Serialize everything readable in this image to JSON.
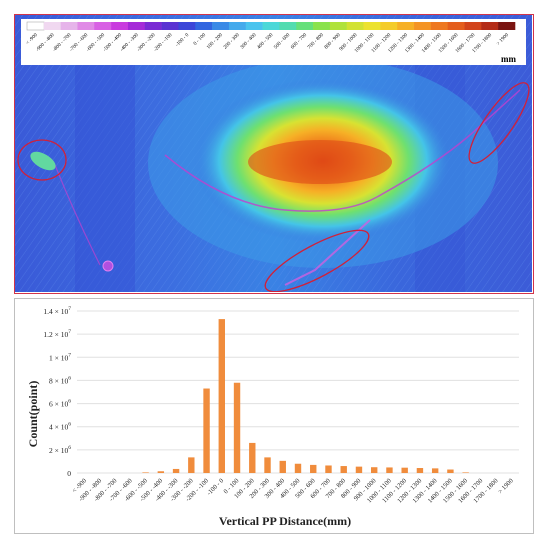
{
  "map_panel": {
    "colorbar": {
      "unit": "mm",
      "labels": [
        "< -900",
        "-900 - -800",
        "-800 - -700",
        "-700 - -600",
        "-600 - -500",
        "-500 - -400",
        "-400 - -300",
        "-300 - -200",
        "-200 - -100",
        "-100 - 0",
        "0 - 100",
        "100 - 200",
        "200 - 300",
        "300 - 400",
        "400 - 500",
        "500 - 600",
        "600 - 700",
        "700 - 800",
        "800 - 900",
        "900 - 1000",
        "1000 - 1100",
        "1100 - 1200",
        "1200 - 1300",
        "1300 - 1400",
        "1400 - 1500",
        "1500 - 1600",
        "1600 - 1700",
        "1700 - 1800",
        "> 1900"
      ],
      "colors": [
        "#ffffff",
        "#f0d8f0",
        "#e6b4ea",
        "#e08ae6",
        "#d860e4",
        "#c93cde",
        "#a52ad8",
        "#7a2ad4",
        "#5a32d2",
        "#3c46d8",
        "#3266e0",
        "#3a8ae6",
        "#44aaec",
        "#4ac4ee",
        "#4cd8d8",
        "#52dcb0",
        "#66e07a",
        "#8ae24c",
        "#b0e23a",
        "#d2e232",
        "#ece22e",
        "#f4cc2a",
        "#f6b026",
        "#f49424",
        "#ee7820",
        "#e45e1c",
        "#d2441a",
        "#b42c16",
        "#7a1410"
      ]
    }
  },
  "chart_data": {
    "type": "bar",
    "title": "",
    "xlabel": "Vertical PP Distance(mm)",
    "ylabel": "Count(point)",
    "ylim": [
      0,
      14000000
    ],
    "y_ticks": [
      0,
      2000000,
      4000000,
      6000000,
      8000000,
      10000000,
      12000000,
      14000000
    ],
    "y_tick_labels": [
      {
        "mant": "0",
        "exp": ""
      },
      {
        "mant": "2 × 10",
        "exp": "6"
      },
      {
        "mant": "4 × 10",
        "exp": "6"
      },
      {
        "mant": "6 × 10",
        "exp": "6"
      },
      {
        "mant": "8 × 10",
        "exp": "6"
      },
      {
        "mant": "1 × 10",
        "exp": "7"
      },
      {
        "mant": "1.2 × 10",
        "exp": "7"
      },
      {
        "mant": "1.4 × 10",
        "exp": "7"
      }
    ],
    "bar_color": "#f08c3c",
    "grid": true,
    "categories": [
      "< -900",
      "-900 - -800",
      "-800 - -700",
      "-700 - -600",
      "-600 - -500",
      "-500 - -400",
      "-400 - -300",
      "-300 - -200",
      "-200 - -100",
      "-100 - 0",
      "0 - 100",
      "100 - 200",
      "200 - 300",
      "300 - 400",
      "400 - 500",
      "500 - 600",
      "600 - 700",
      "700 - 800",
      "800 - 900",
      "900 - 1000",
      "1000 - 1100",
      "1100 - 1200",
      "1200 - 1300",
      "1300 - 1400",
      "1400 - 1500",
      "1500 - 1600",
      "1600 - 1700",
      "1700 - 1800",
      "> 1900"
    ],
    "values": [
      0,
      0,
      0,
      0,
      50000,
      150000,
      350000,
      1350000,
      7300000,
      13300000,
      7800000,
      2600000,
      1350000,
      1050000,
      800000,
      700000,
      650000,
      600000,
      550000,
      500000,
      480000,
      460000,
      430000,
      400000,
      300000,
      50000,
      0,
      0,
      0
    ]
  }
}
